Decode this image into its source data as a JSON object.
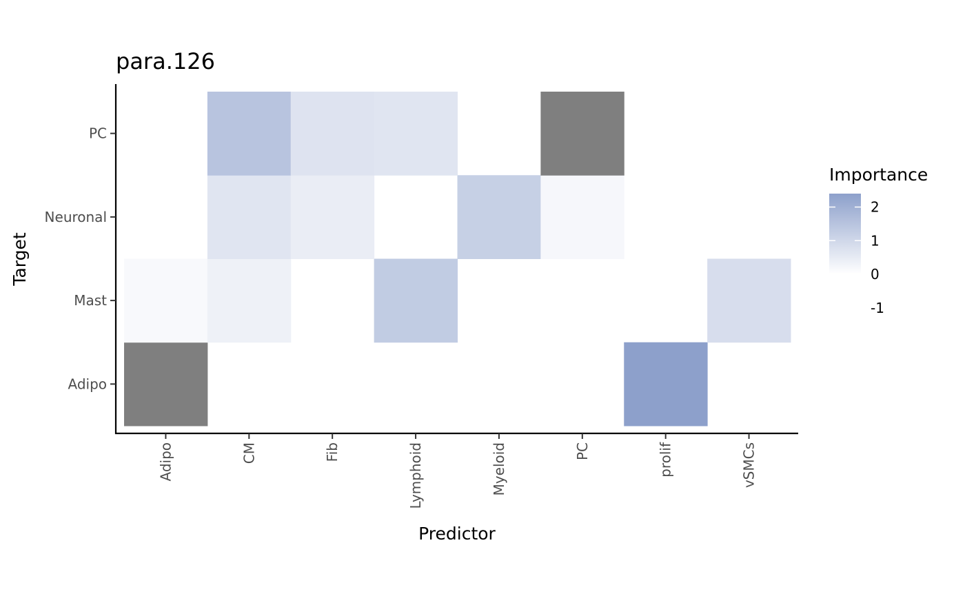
{
  "chart_data": {
    "type": "heatmap",
    "title": "para.126",
    "xlabel": "Predictor",
    "ylabel": "Target",
    "x_categories": [
      "Adipo",
      "CM",
      "Fib",
      "Lymphoid",
      "Myeloid",
      "PC",
      "prolif",
      "vSMCs"
    ],
    "y_categories": [
      "Adipo",
      "Mast",
      "Neuronal",
      "PC"
    ],
    "cells": [
      {
        "x": "Adipo",
        "y": "Adipo",
        "value": null
      },
      {
        "x": "prolif",
        "y": "Adipo",
        "value": 2.4
      },
      {
        "x": "Adipo",
        "y": "Mast",
        "value": 0.15
      },
      {
        "x": "CM",
        "y": "Mast",
        "value": 0.35
      },
      {
        "x": "Lymphoid",
        "y": "Mast",
        "value": 1.3
      },
      {
        "x": "vSMCs",
        "y": "Mast",
        "value": 0.85
      },
      {
        "x": "CM",
        "y": "Neuronal",
        "value": 0.65
      },
      {
        "x": "Fib",
        "y": "Neuronal",
        "value": 0.45
      },
      {
        "x": "Myeloid",
        "y": "Neuronal",
        "value": 1.2
      },
      {
        "x": "PC",
        "y": "Neuronal",
        "value": 0.2
      },
      {
        "x": "CM",
        "y": "PC",
        "value": 1.5
      },
      {
        "x": "Fib",
        "y": "PC",
        "value": 0.7
      },
      {
        "x": "Lymphoid",
        "y": "PC",
        "value": 0.65
      },
      {
        "x": "PC",
        "y": "PC",
        "value": null
      }
    ],
    "na_color": "#7f7f7f",
    "color_scale": {
      "low": "#ffffff",
      "high": "#8da0cb",
      "domain": [
        0,
        2.4
      ]
    },
    "legend": {
      "title": "Importance",
      "position": "right",
      "labels": [
        "2",
        "1",
        "0",
        "-1"
      ],
      "label_values": [
        2,
        1,
        0,
        -1
      ],
      "bar_range": [
        0,
        2.4
      ]
    },
    "grid": false
  }
}
